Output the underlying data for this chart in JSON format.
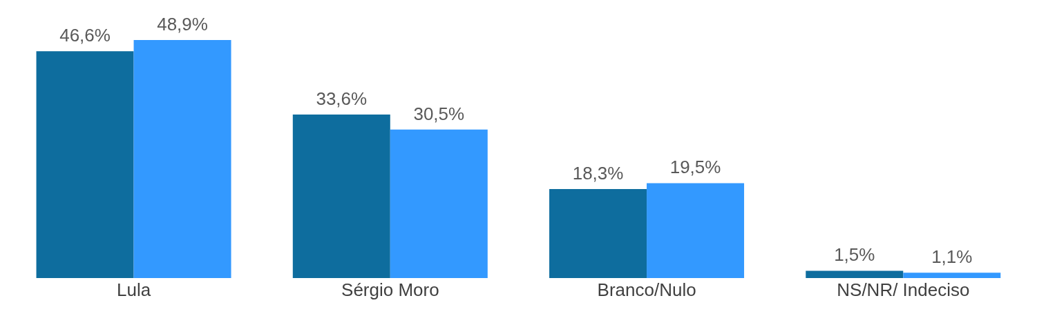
{
  "chart_data": {
    "type": "bar",
    "categories": [
      "Lula",
      "Sérgio Moro",
      "Branco/Nulo",
      "NS/NR/ Indeciso"
    ],
    "series": [
      {
        "color": "#0e6d9e",
        "values": [
          46.6,
          33.6,
          18.3,
          1.5
        ],
        "value_labels": [
          "46,6%",
          "33,6%",
          "18,3%",
          "1,5%"
        ]
      },
      {
        "color": "#3399ff",
        "values": [
          48.9,
          30.5,
          19.5,
          1.1
        ],
        "value_labels": [
          "48,9%",
          "30,5%",
          "19,5%",
          "1,1%"
        ]
      }
    ],
    "tick_labels": "x",
    "grid": false,
    "legend": false
  }
}
